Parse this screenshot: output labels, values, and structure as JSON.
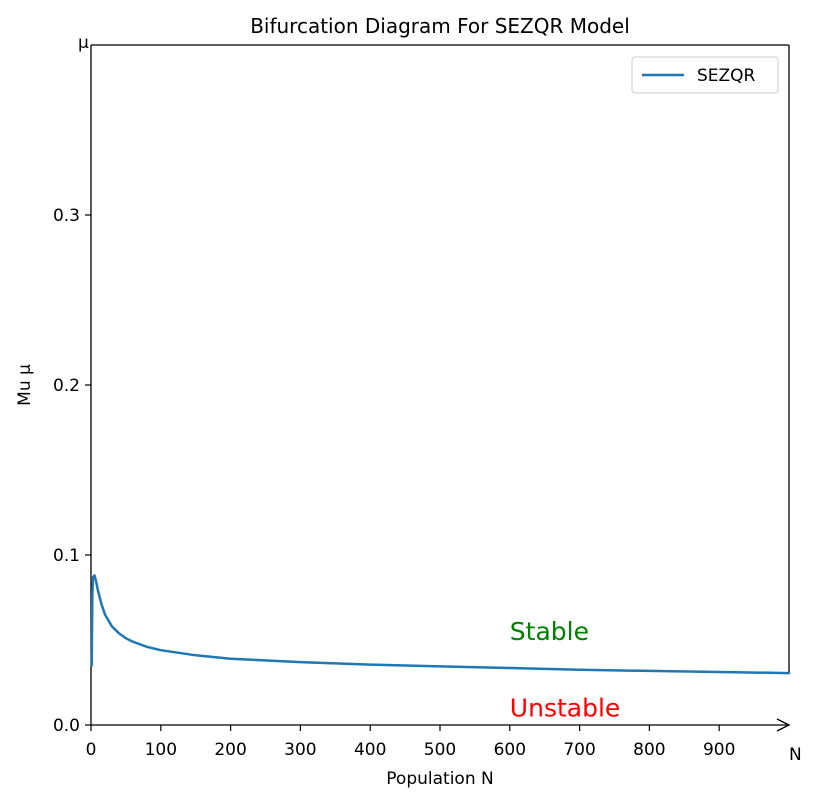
{
  "chart_data": {
    "type": "line",
    "title": "Bifurcation Diagram For SEZQR Model",
    "xlabel": "Population N",
    "ylabel": "Mu μ",
    "x_axis_end_label": "N",
    "y_axis_end_label": "μ",
    "xlim": [
      0,
      1000
    ],
    "ylim": [
      0,
      0.4
    ],
    "x_ticks": [
      0,
      100,
      200,
      300,
      400,
      500,
      600,
      700,
      800,
      900
    ],
    "x_tick_labels": [
      "0",
      "100",
      "200",
      "300",
      "400",
      "500",
      "600",
      "700",
      "800",
      "900"
    ],
    "y_ticks": [
      0.0,
      0.1,
      0.2,
      0.3
    ],
    "y_tick_labels": [
      "0.0",
      "0.1",
      "0.2",
      "0.3"
    ],
    "grid": false,
    "legend_position": "top-right",
    "series": [
      {
        "name": "SEZQR",
        "color": "#1f77b4",
        "x": [
          1,
          2,
          3,
          5,
          7,
          10,
          15,
          20,
          30,
          40,
          50,
          60,
          80,
          100,
          150,
          200,
          300,
          400,
          500,
          600,
          700,
          800,
          900,
          1000
        ],
        "y": [
          0.035,
          0.078,
          0.087,
          0.088,
          0.085,
          0.079,
          0.071,
          0.065,
          0.058,
          0.054,
          0.051,
          0.049,
          0.046,
          0.044,
          0.041,
          0.039,
          0.037,
          0.0355,
          0.0345,
          0.0335,
          0.0325,
          0.0318,
          0.0312,
          0.0305
        ]
      }
    ],
    "annotations": [
      {
        "text": "Stable",
        "x": 600,
        "y": 0.05,
        "color": "#008000"
      },
      {
        "text": "Unstable",
        "x": 600,
        "y": 0.005,
        "color": "#ff0000"
      }
    ]
  }
}
